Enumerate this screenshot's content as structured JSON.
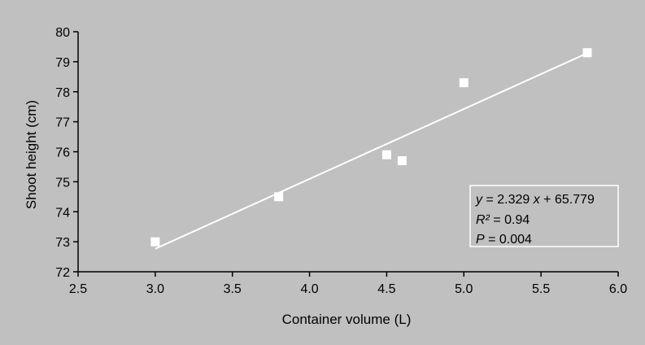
{
  "chart_data": {
    "type": "scatter",
    "title": "",
    "xlabel": "Container volume (L)",
    "ylabel": "Shoot height (cm)",
    "xlim": [
      2.5,
      6.0
    ],
    "ylim": [
      72,
      80
    ],
    "x_ticks": [
      "2.5",
      "3.0",
      "3.5",
      "4.0",
      "4.5",
      "5.0",
      "5.5",
      "6.0"
    ],
    "y_ticks": [
      "72",
      "73",
      "74",
      "75",
      "76",
      "77",
      "78",
      "79",
      "80"
    ],
    "grid": false,
    "legend": "none",
    "series": [
      {
        "marker": "square",
        "color": "#ffffff",
        "points": [
          {
            "x": 3.0,
            "y": 73.0
          },
          {
            "x": 3.8,
            "y": 74.5
          },
          {
            "x": 4.5,
            "y": 75.9
          },
          {
            "x": 4.6,
            "y": 75.7
          },
          {
            "x": 5.0,
            "y": 78.3
          },
          {
            "x": 5.8,
            "y": 79.3
          }
        ]
      }
    ],
    "trendline": {
      "slope": 2.329,
      "intercept": 65.779,
      "x_range": [
        3.0,
        5.8
      ],
      "color": "#ffffff"
    },
    "annotation": {
      "equation": {
        "y": "y",
        "eq": " = 2.329 ",
        "x": "x",
        "rest": " + 65.779"
      },
      "r2": {
        "label": "R²",
        "value": " = 0.94"
      },
      "p": {
        "label": "P",
        "value": " = 0.004"
      },
      "placement": "bottom-right"
    },
    "colors": {
      "background": "#c0c0c0",
      "axis": "#000000",
      "marker": "#ffffff",
      "trendline": "#ffffff",
      "annotation_border": "#ffffff"
    }
  }
}
